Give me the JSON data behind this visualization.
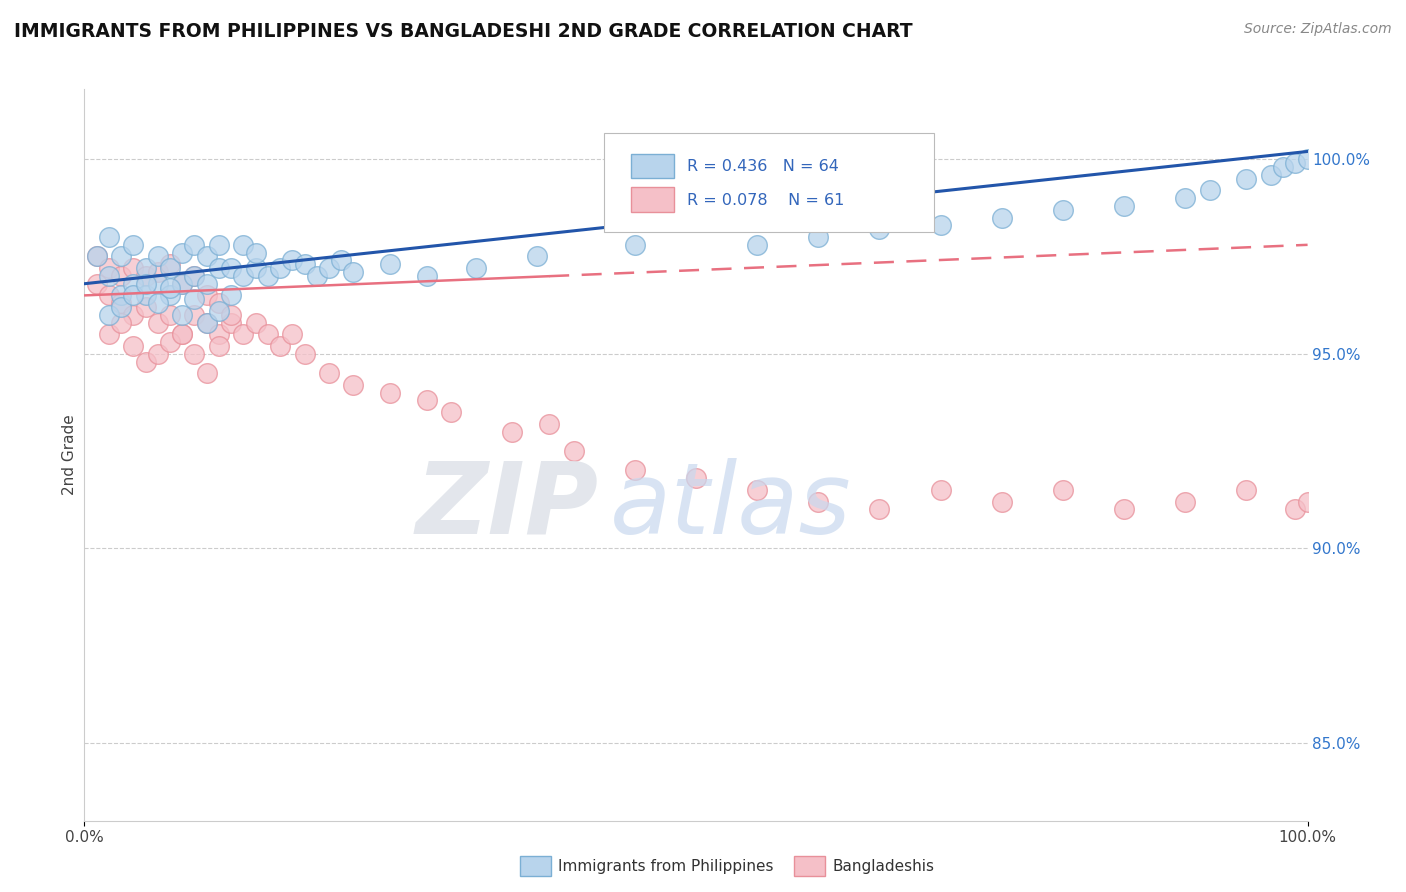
{
  "title": "IMMIGRANTS FROM PHILIPPINES VS BANGLADESHI 2ND GRADE CORRELATION CHART",
  "source": "Source: ZipAtlas.com",
  "ylabel": "2nd Grade",
  "xlim": [
    0.0,
    100.0
  ],
  "ylim": [
    83.0,
    101.8
  ],
  "right_yticks": [
    85.0,
    90.0,
    95.0,
    100.0
  ],
  "legend_labels": [
    "Immigrants from Philippines",
    "Bangladeshis"
  ],
  "legend_r_n": [
    {
      "R": "0.436",
      "N": "64"
    },
    {
      "R": "0.078",
      "N": "61"
    }
  ],
  "blue_edge": "#7BAFD4",
  "blue_fill": "#B8D4EC",
  "pink_edge": "#E8909A",
  "pink_fill": "#F5C0C8",
  "blue_line_color": "#2255AA",
  "pink_line_color": "#E87080",
  "background_color": "#ffffff",
  "grid_color": "#cccccc",
  "blue_x": [
    1,
    2,
    2,
    3,
    3,
    4,
    4,
    5,
    5,
    6,
    6,
    7,
    7,
    8,
    8,
    9,
    9,
    10,
    10,
    11,
    11,
    12,
    12,
    13,
    13,
    14,
    14,
    15,
    16,
    17,
    18,
    19,
    20,
    21,
    22,
    25,
    28,
    32,
    37,
    45,
    55,
    60,
    65,
    70,
    75,
    80,
    85,
    90,
    92,
    95,
    97,
    98,
    99,
    100,
    2,
    3,
    4,
    5,
    6,
    7,
    8,
    9,
    10,
    11
  ],
  "blue_y": [
    97.5,
    97.0,
    98.0,
    96.5,
    97.5,
    96.8,
    97.8,
    96.5,
    97.2,
    96.8,
    97.5,
    96.5,
    97.2,
    96.8,
    97.6,
    97.0,
    97.8,
    96.8,
    97.5,
    97.2,
    97.8,
    96.5,
    97.2,
    97.0,
    97.8,
    97.2,
    97.6,
    97.0,
    97.2,
    97.4,
    97.3,
    97.0,
    97.2,
    97.4,
    97.1,
    97.3,
    97.0,
    97.2,
    97.5,
    97.8,
    97.8,
    98.0,
    98.2,
    98.3,
    98.5,
    98.7,
    98.8,
    99.0,
    99.2,
    99.5,
    99.6,
    99.8,
    99.9,
    100.0,
    96.0,
    96.2,
    96.5,
    96.8,
    96.3,
    96.7,
    96.0,
    96.4,
    95.8,
    96.1
  ],
  "pink_x": [
    1,
    1,
    2,
    2,
    3,
    3,
    4,
    4,
    5,
    5,
    6,
    6,
    7,
    7,
    8,
    8,
    9,
    9,
    10,
    10,
    11,
    11,
    12,
    12,
    13,
    14,
    15,
    16,
    17,
    18,
    20,
    22,
    25,
    28,
    30,
    35,
    38,
    40,
    45,
    50,
    55,
    60,
    65,
    70,
    75,
    80,
    85,
    90,
    95,
    99,
    100,
    2,
    3,
    4,
    5,
    6,
    7,
    8,
    9,
    10,
    11
  ],
  "pink_y": [
    96.8,
    97.5,
    96.5,
    97.2,
    96.3,
    97.0,
    96.0,
    97.2,
    96.2,
    97.0,
    95.8,
    97.1,
    96.0,
    97.3,
    95.5,
    96.8,
    96.0,
    97.0,
    95.8,
    96.5,
    95.5,
    96.3,
    95.8,
    96.0,
    95.5,
    95.8,
    95.5,
    95.2,
    95.5,
    95.0,
    94.5,
    94.2,
    94.0,
    93.8,
    93.5,
    93.0,
    93.2,
    92.5,
    92.0,
    91.8,
    91.5,
    91.2,
    91.0,
    91.5,
    91.2,
    91.5,
    91.0,
    91.2,
    91.5,
    91.0,
    91.2,
    95.5,
    95.8,
    95.2,
    94.8,
    95.0,
    95.3,
    95.5,
    95.0,
    94.5,
    95.2
  ],
  "blue_trend_x0": 0,
  "blue_trend_x1": 100,
  "blue_trend_y0": 96.8,
  "blue_trend_y1": 100.2,
  "pink_trend_x0": 0,
  "pink_trend_x1": 100,
  "pink_trend_y0": 96.5,
  "pink_trend_y1": 97.8,
  "pink_solid_end_x": 38,
  "watermark_zip": "ZIP",
  "watermark_atlas": "atlas"
}
